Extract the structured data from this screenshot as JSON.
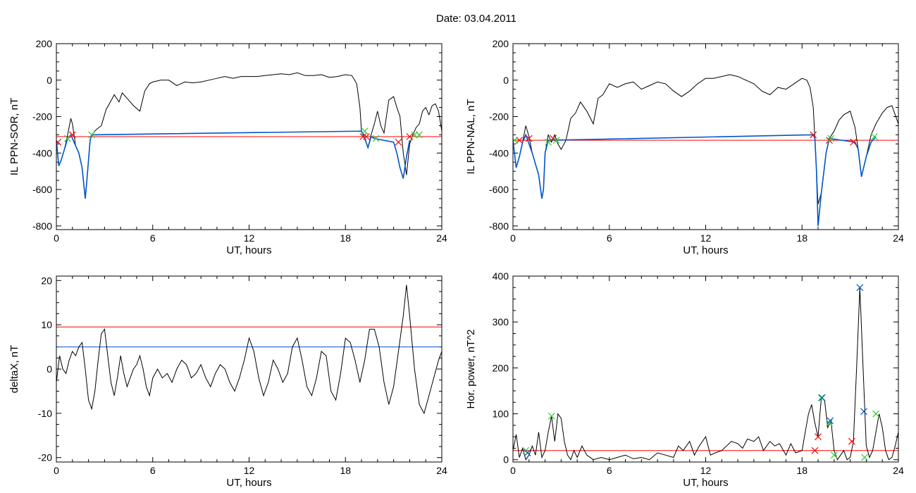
{
  "title": "Date:  03.04.2011",
  "chart_data": [
    {
      "type": "line",
      "ylabel": "IL PPN-SOR, nT",
      "xlabel": "UT, hours",
      "xlim": [
        0,
        24
      ],
      "ylim": [
        -820,
        200
      ],
      "xticks": [
        0,
        6,
        12,
        18,
        24
      ],
      "yticks": [
        -800,
        -600,
        -400,
        -200,
        0,
        200
      ],
      "series": [
        {
          "color": "#000000",
          "x": [
            0,
            0.15,
            0.3,
            0.5,
            0.7,
            0.9,
            1.0,
            1.2,
            1.4,
            1.6,
            1.8,
            1.9,
            2.0,
            2.1,
            2.2,
            2.3,
            2.5,
            2.8,
            3.1,
            3.3,
            3.6,
            3.9,
            4.1,
            4.4,
            4.8,
            5.2,
            5.5,
            5.8,
            6.0,
            6.5,
            7.0,
            7.5,
            8.0,
            8.5,
            9.0,
            9.5,
            10.0,
            10.5,
            11.0,
            11.5,
            12.0,
            12.5,
            13.0,
            13.5,
            14.0,
            14.5,
            15.0,
            15.5,
            16.0,
            16.5,
            17.0,
            17.5,
            18.0,
            18.4,
            18.7,
            18.9,
            19.0,
            19.2,
            19.4,
            19.6,
            19.8,
            20.0,
            20.2,
            20.4,
            20.7,
            21.0,
            21.2,
            21.4,
            21.6,
            21.8,
            22.0,
            22.2,
            22.4,
            22.6,
            22.8,
            23.0,
            23.2,
            23.4,
            23.6,
            23.8,
            24.0
          ],
          "y": [
            -330,
            -470,
            -440,
            -380,
            -300,
            -210,
            -240,
            -360,
            -400,
            -480,
            -650,
            -550,
            -440,
            -330,
            -300,
            -290,
            -270,
            -250,
            -160,
            -130,
            -80,
            -120,
            -70,
            -100,
            -140,
            -170,
            -60,
            -20,
            -10,
            0,
            0,
            -30,
            -10,
            -15,
            -10,
            0,
            10,
            20,
            10,
            20,
            20,
            20,
            25,
            30,
            35,
            30,
            40,
            25,
            25,
            30,
            15,
            20,
            30,
            25,
            -20,
            -150,
            -280,
            -320,
            -370,
            -300,
            -240,
            -170,
            -250,
            -290,
            -110,
            -90,
            -150,
            -200,
            -400,
            -520,
            -350,
            -300,
            -260,
            -240,
            -170,
            -150,
            -190,
            -140,
            -130,
            -170,
            -280
          ]
        },
        {
          "color": "#0055cc",
          "x": [
            0,
            0.15,
            0.3,
            0.5,
            0.7,
            0.9,
            1.2,
            1.4,
            1.6,
            1.8,
            1.9,
            2.0,
            2.1,
            2.2,
            19.0,
            19.2,
            19.4,
            19.6,
            19.8,
            21.0,
            21.2,
            21.4,
            21.6,
            21.8,
            22.0
          ],
          "y": [
            -330,
            -470,
            -440,
            -380,
            -320,
            -300,
            -360,
            -400,
            -480,
            -650,
            -550,
            -440,
            -330,
            -300,
            -280,
            -320,
            -370,
            -310,
            -320,
            -340,
            -400,
            -480,
            -540,
            -420,
            -330
          ]
        }
      ],
      "threshold": [
        {
          "value": -310,
          "color": "#ff0000"
        }
      ],
      "markers_red": [
        {
          "x": 0.1,
          "y": -340
        },
        {
          "x": 1.0,
          "y": -300
        },
        {
          "x": 19.1,
          "y": -310
        },
        {
          "x": 19.3,
          "y": -310
        },
        {
          "x": 21.3,
          "y": -340
        },
        {
          "x": 22.0,
          "y": -310
        }
      ],
      "markers_green": [
        {
          "x": 0.7,
          "y": -320
        },
        {
          "x": 2.2,
          "y": -300
        },
        {
          "x": 19.2,
          "y": -280
        },
        {
          "x": 19.9,
          "y": -320
        },
        {
          "x": 22.3,
          "y": -300
        },
        {
          "x": 22.6,
          "y": -300
        }
      ]
    },
    {
      "type": "line",
      "ylabel": "IL PPN-NAL, nT",
      "xlabel": "UT, hours",
      "xlim": [
        0,
        24
      ],
      "ylim": [
        -820,
        200
      ],
      "xticks": [
        0,
        6,
        12,
        18,
        24
      ],
      "yticks": [
        -800,
        -600,
        -400,
        -200,
        0,
        200
      ],
      "series": [
        {
          "color": "#000000",
          "x": [
            0,
            0.2,
            0.4,
            0.6,
            0.8,
            1.0,
            1.2,
            1.4,
            1.6,
            1.8,
            1.9,
            2.0,
            2.2,
            2.4,
            2.6,
            2.8,
            3.0,
            3.3,
            3.6,
            3.9,
            4.2,
            4.6,
            5.0,
            5.3,
            5.6,
            6.0,
            6.5,
            7.0,
            7.5,
            8.0,
            8.5,
            9.0,
            9.5,
            10.0,
            10.5,
            11.0,
            11.5,
            12.0,
            12.5,
            13.0,
            13.5,
            14.0,
            14.5,
            15.0,
            15.5,
            16.0,
            16.5,
            17.0,
            17.5,
            18.0,
            18.3,
            18.5,
            18.7,
            18.8,
            18.9,
            19.0,
            19.2,
            19.5,
            19.7,
            20.0,
            20.3,
            20.6,
            21.0,
            21.3,
            21.5,
            21.7,
            22.0,
            22.3,
            22.6,
            23.0,
            23.3,
            23.6,
            24.0
          ],
          "y": [
            -330,
            -480,
            -420,
            -340,
            -250,
            -310,
            -400,
            -460,
            -520,
            -650,
            -600,
            -400,
            -300,
            -340,
            -300,
            -350,
            -380,
            -330,
            -210,
            -180,
            -120,
            -170,
            -240,
            -100,
            -80,
            -20,
            -40,
            -20,
            -10,
            -50,
            -30,
            -10,
            -20,
            -60,
            -90,
            -60,
            -20,
            10,
            10,
            20,
            30,
            20,
            0,
            -20,
            -60,
            -80,
            -40,
            -50,
            -20,
            10,
            0,
            -40,
            -150,
            -320,
            -500,
            -680,
            -620,
            -400,
            -320,
            -280,
            -220,
            -190,
            -170,
            -260,
            -380,
            -530,
            -420,
            -300,
            -240,
            -180,
            -150,
            -140,
            -240
          ]
        },
        {
          "color": "#0055cc",
          "x": [
            0,
            0.2,
            0.4,
            0.6,
            0.8,
            1.2,
            1.4,
            1.6,
            1.8,
            1.9,
            2.0,
            2.2,
            18.7,
            18.8,
            18.9,
            19.0,
            19.2,
            19.5,
            19.7,
            21.3,
            21.5,
            21.7,
            22.0,
            22.3,
            22.6
          ],
          "y": [
            -330,
            -480,
            -420,
            -340,
            -300,
            -400,
            -460,
            -520,
            -650,
            -600,
            -400,
            -330,
            -300,
            -320,
            -500,
            -800,
            -620,
            -400,
            -320,
            -340,
            -380,
            -530,
            -420,
            -340,
            -310
          ]
        }
      ],
      "threshold": [
        {
          "value": -330,
          "color": "#ff0000"
        }
      ],
      "markers_red": [
        {
          "x": 0.4,
          "y": -330
        },
        {
          "x": 1.0,
          "y": -320
        },
        {
          "x": 2.5,
          "y": -320
        },
        {
          "x": 18.7,
          "y": -300
        },
        {
          "x": 19.7,
          "y": -330
        },
        {
          "x": 21.2,
          "y": -340
        }
      ],
      "markers_green": [
        {
          "x": 0.1,
          "y": -330
        },
        {
          "x": 2.2,
          "y": -340
        },
        {
          "x": 2.7,
          "y": -330
        },
        {
          "x": 19.8,
          "y": -320
        },
        {
          "x": 22.5,
          "y": -310
        }
      ]
    },
    {
      "type": "line",
      "ylabel": "deltaX, nT",
      "xlabel": "UT, hours",
      "xlim": [
        0,
        24
      ],
      "ylim": [
        -21,
        21
      ],
      "xticks": [
        0,
        6,
        12,
        18,
        24
      ],
      "yticks": [
        -20,
        -10,
        0,
        10,
        20
      ],
      "series": [
        {
          "color": "#000000",
          "x": [
            0,
            0.2,
            0.4,
            0.6,
            0.8,
            1.0,
            1.2,
            1.4,
            1.6,
            1.8,
            2.0,
            2.2,
            2.4,
            2.6,
            2.8,
            3.0,
            3.2,
            3.4,
            3.6,
            3.8,
            4.0,
            4.2,
            4.4,
            4.6,
            4.8,
            5.0,
            5.2,
            5.4,
            5.6,
            5.8,
            6.0,
            6.3,
            6.6,
            6.9,
            7.2,
            7.5,
            7.8,
            8.1,
            8.4,
            8.7,
            9.0,
            9.3,
            9.6,
            9.9,
            10.2,
            10.5,
            10.8,
            11.1,
            11.4,
            11.7,
            12.0,
            12.3,
            12.6,
            12.9,
            13.2,
            13.5,
            13.8,
            14.1,
            14.4,
            14.7,
            15.0,
            15.3,
            15.6,
            15.9,
            16.2,
            16.5,
            16.8,
            17.1,
            17.4,
            17.7,
            18.0,
            18.3,
            18.6,
            18.9,
            19.2,
            19.5,
            19.8,
            20.1,
            20.4,
            20.7,
            21.0,
            21.3,
            21.6,
            21.8,
            22.0,
            22.3,
            22.6,
            22.9,
            23.2,
            23.5,
            23.8,
            24.0
          ],
          "y": [
            -3,
            3,
            0,
            -1,
            2,
            4,
            3,
            5,
            6,
            0,
            -7,
            -9,
            -5,
            2,
            8,
            9,
            3,
            -3,
            -6,
            -2,
            3,
            -1,
            -4,
            -2,
            0,
            1,
            3,
            0,
            -4,
            -6,
            -2,
            0,
            -2,
            -1,
            -3,
            0,
            2,
            1,
            -2,
            -1,
            1,
            -2,
            -4,
            -1,
            1,
            0,
            -3,
            -5,
            -2,
            2,
            7,
            4,
            -2,
            -6,
            -3,
            2,
            0,
            -3,
            -1,
            5,
            7,
            2,
            -4,
            -6,
            -2,
            4,
            3,
            -5,
            -7,
            -1,
            7,
            6,
            2,
            -3,
            2,
            9,
            9,
            5,
            -3,
            -8,
            -4,
            4,
            12,
            19,
            12,
            0,
            -8,
            -10,
            -6,
            -2,
            2,
            4
          ]
        }
      ],
      "threshold": [
        {
          "value": 9.5,
          "color": "#ff0000"
        },
        {
          "value": 5,
          "color": "#0055cc"
        }
      ],
      "markers_red": [],
      "markers_green": []
    },
    {
      "type": "line",
      "ylabel": "Hor. power, nT^2",
      "xlabel": "UT, hours",
      "xlim": [
        0,
        24
      ],
      "ylim": [
        -5,
        400
      ],
      "xticks": [
        0,
        6,
        12,
        18,
        24
      ],
      "yticks": [
        0,
        100,
        200,
        300,
        400
      ],
      "series": [
        {
          "color": "#000000",
          "x": [
            0,
            0.2,
            0.4,
            0.6,
            0.8,
            1.0,
            1.2,
            1.4,
            1.6,
            1.8,
            2.0,
            2.2,
            2.4,
            2.6,
            2.8,
            3.0,
            3.2,
            3.4,
            3.6,
            3.8,
            4.0,
            4.3,
            4.6,
            5.0,
            5.5,
            6.0,
            6.5,
            7.0,
            7.5,
            8.0,
            8.5,
            9.0,
            9.5,
            10.0,
            10.3,
            10.6,
            11.0,
            11.3,
            11.6,
            12.0,
            12.3,
            12.6,
            13.0,
            13.3,
            13.6,
            14.0,
            14.3,
            14.6,
            15.0,
            15.3,
            15.6,
            16.0,
            16.3,
            16.6,
            17.0,
            17.3,
            17.6,
            18.0,
            18.2,
            18.4,
            18.6,
            18.8,
            19.0,
            19.2,
            19.4,
            19.6,
            19.8,
            20.0,
            20.2,
            20.4,
            20.6,
            20.8,
            21.0,
            21.2,
            21.4,
            21.6,
            21.8,
            22.0,
            22.2,
            22.4,
            22.6,
            22.8,
            23.0,
            23.2,
            23.4,
            23.6,
            23.8,
            24.0
          ],
          "y": [
            20,
            55,
            5,
            25,
            0,
            10,
            30,
            10,
            60,
            5,
            20,
            60,
            95,
            40,
            100,
            90,
            40,
            10,
            0,
            20,
            5,
            30,
            10,
            0,
            5,
            0,
            5,
            10,
            2,
            5,
            0,
            15,
            10,
            5,
            30,
            20,
            40,
            10,
            30,
            50,
            10,
            15,
            20,
            30,
            40,
            35,
            25,
            45,
            40,
            50,
            20,
            40,
            30,
            35,
            10,
            35,
            15,
            20,
            60,
            100,
            120,
            80,
            50,
            135,
            130,
            70,
            85,
            20,
            0,
            10,
            20,
            0,
            5,
            40,
            200,
            375,
            200,
            30,
            5,
            20,
            60,
            100,
            70,
            20,
            0,
            5,
            30,
            60
          ]
        }
      ],
      "threshold": [
        {
          "value": 20,
          "color": "#ff0000"
        }
      ],
      "markers_red": [
        {
          "x": 18.8,
          "y": 20
        },
        {
          "x": 19.0,
          "y": 50
        },
        {
          "x": 21.1,
          "y": 40
        }
      ],
      "markers_green": [
        {
          "x": 0.8,
          "y": 20
        },
        {
          "x": 2.4,
          "y": 95
        },
        {
          "x": 19.2,
          "y": 135
        },
        {
          "x": 19.7,
          "y": 80
        },
        {
          "x": 20.0,
          "y": 10
        },
        {
          "x": 21.9,
          "y": 5
        },
        {
          "x": 22.6,
          "y": 100
        }
      ],
      "markers_blue": [
        {
          "x": 0.9,
          "y": 15
        },
        {
          "x": 19.25,
          "y": 135
        },
        {
          "x": 19.75,
          "y": 85
        },
        {
          "x": 21.6,
          "y": 375
        },
        {
          "x": 21.85,
          "y": 105
        }
      ]
    }
  ]
}
